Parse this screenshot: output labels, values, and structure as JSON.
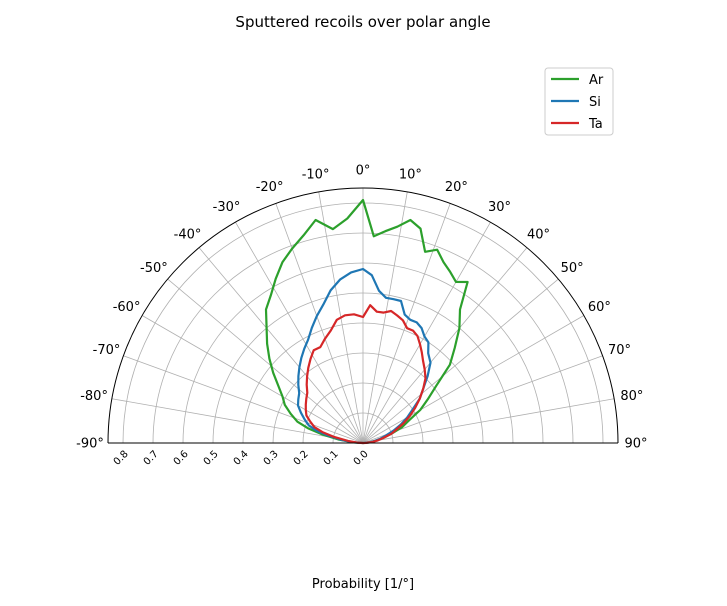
{
  "chart_data": {
    "type": "line",
    "subtype": "polar-half",
    "title": "Sputtered recoils over polar angle",
    "xlabel": "Probability [1/°]",
    "theta_range_deg": [
      -90,
      90
    ],
    "r_range": [
      0,
      0.85
    ],
    "r_ticks": [
      "0.0",
      "0.1",
      "0.2",
      "0.3",
      "0.4",
      "0.5",
      "0.6",
      "0.7",
      "0.8"
    ],
    "theta_ticks": [
      "-90°",
      "-80°",
      "-70°",
      "-60°",
      "-50°",
      "-40°",
      "-30°",
      "-20°",
      "-10°",
      "0°",
      "10°",
      "20°",
      "30°",
      "40°",
      "50°",
      "60°",
      "70°",
      "80°",
      "90°"
    ],
    "grid": true,
    "legend_position": "top-right",
    "series": [
      {
        "name": "Ar",
        "color": "#2ca02c",
        "theta": [
          -90,
          -86,
          -82,
          -78,
          -75,
          -72,
          -68,
          -64,
          -60,
          -56,
          -52,
          -48,
          -44,
          -40,
          -36,
          -32,
          -28,
          -24,
          -20,
          -16,
          -12,
          -8,
          -4,
          0,
          3,
          6,
          9,
          12,
          15,
          18,
          21,
          24,
          27,
          30,
          33,
          36,
          40,
          44,
          48,
          52,
          56,
          60,
          64,
          68,
          72,
          76,
          80,
          84,
          88,
          90
        ],
        "r": [
          0.0,
          0.03,
          0.08,
          0.14,
          0.19,
          0.23,
          0.26,
          0.29,
          0.31,
          0.34,
          0.38,
          0.42,
          0.46,
          0.5,
          0.55,
          0.58,
          0.62,
          0.66,
          0.69,
          0.72,
          0.76,
          0.72,
          0.75,
          0.81,
          0.69,
          0.71,
          0.73,
          0.76,
          0.74,
          0.67,
          0.69,
          0.66,
          0.64,
          0.62,
          0.64,
          0.55,
          0.5,
          0.44,
          0.39,
          0.31,
          0.26,
          0.22,
          0.17,
          0.14,
          0.1,
          0.07,
          0.04,
          0.02,
          0.005,
          0.0
        ]
      },
      {
        "name": "Si",
        "color": "#1f77b4",
        "theta": [
          -90,
          -86,
          -82,
          -78,
          -75,
          -72,
          -68,
          -64,
          -60,
          -56,
          -52,
          -48,
          -44,
          -40,
          -36,
          -32,
          -28,
          -24,
          -20,
          -16,
          -12,
          -8,
          -4,
          0,
          3,
          6,
          9,
          12,
          15,
          18,
          21,
          24,
          27,
          30,
          33,
          36,
          40,
          44,
          48,
          52,
          56,
          60,
          64,
          68,
          72,
          76,
          80,
          84,
          88,
          90
        ],
        "r": [
          0.0,
          0.03,
          0.07,
          0.12,
          0.16,
          0.19,
          0.21,
          0.23,
          0.25,
          0.26,
          0.27,
          0.29,
          0.31,
          0.33,
          0.35,
          0.37,
          0.39,
          0.42,
          0.45,
          0.48,
          0.52,
          0.55,
          0.57,
          0.58,
          0.56,
          0.51,
          0.49,
          0.49,
          0.49,
          0.45,
          0.44,
          0.44,
          0.43,
          0.41,
          0.4,
          0.37,
          0.35,
          0.31,
          0.27,
          0.24,
          0.2,
          0.17,
          0.14,
          0.11,
          0.08,
          0.06,
          0.04,
          0.02,
          0.005,
          0.0
        ]
      },
      {
        "name": "Ta",
        "color": "#d62728",
        "theta": [
          -90,
          -86,
          -82,
          -78,
          -75,
          -72,
          -68,
          -64,
          -60,
          -56,
          -52,
          -48,
          -44,
          -40,
          -36,
          -32,
          -28,
          -24,
          -20,
          -16,
          -12,
          -8,
          -4,
          0,
          3,
          6,
          9,
          12,
          15,
          18,
          21,
          24,
          27,
          30,
          33,
          36,
          40,
          44,
          48,
          52,
          56,
          60,
          64,
          68,
          72,
          76,
          80,
          84,
          88,
          90
        ],
        "r": [
          0.0,
          0.02,
          0.05,
          0.1,
          0.14,
          0.17,
          0.19,
          0.21,
          0.22,
          0.23,
          0.24,
          0.25,
          0.27,
          0.29,
          0.31,
          0.33,
          0.35,
          0.35,
          0.37,
          0.39,
          0.42,
          0.43,
          0.43,
          0.42,
          0.46,
          0.44,
          0.44,
          0.45,
          0.44,
          0.43,
          0.41,
          0.41,
          0.4,
          0.38,
          0.36,
          0.34,
          0.32,
          0.3,
          0.27,
          0.24,
          0.21,
          0.18,
          0.15,
          0.12,
          0.1,
          0.07,
          0.05,
          0.03,
          0.01,
          0.0
        ]
      }
    ]
  }
}
